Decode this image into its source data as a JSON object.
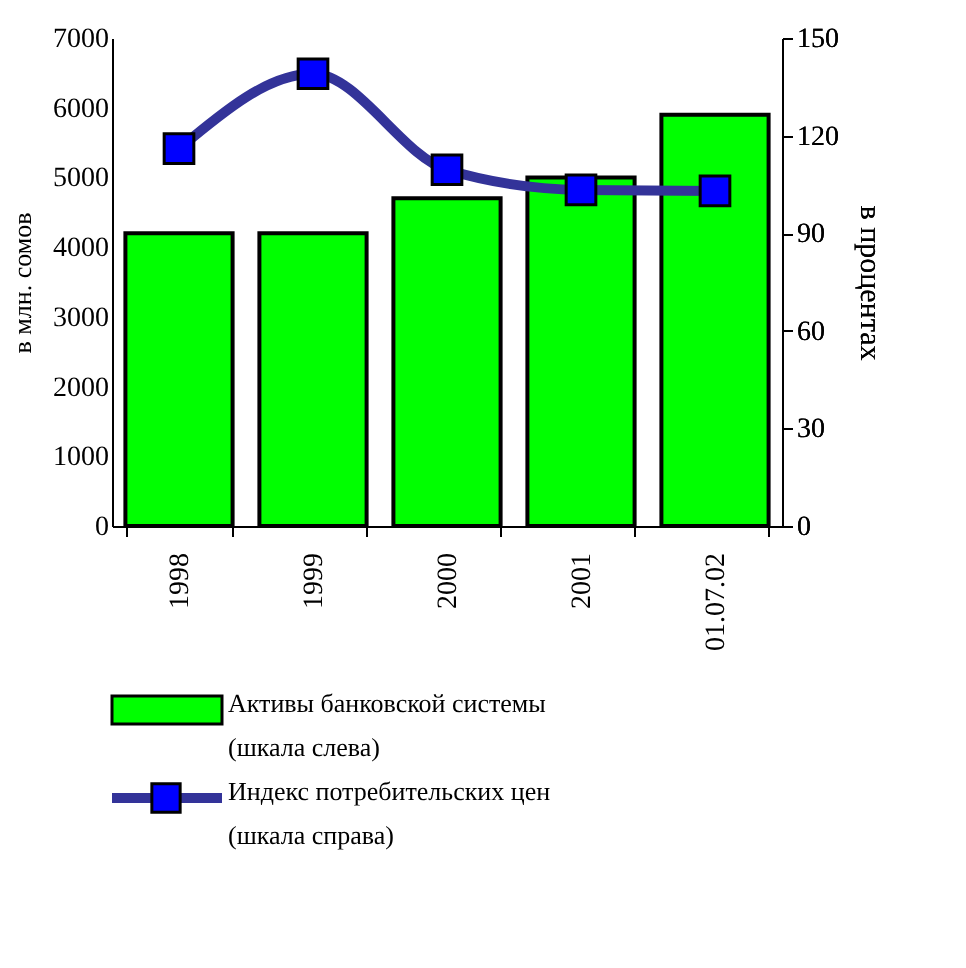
{
  "chart_data": {
    "type": "bar",
    "categories": [
      "1998",
      "1999",
      "2000",
      "2001",
      "01.07.02"
    ],
    "ylabel": "в млн. сомов",
    "y2label": "в процентах",
    "ylim": [
      0,
      7000
    ],
    "yticks": [
      0,
      1000,
      2000,
      3000,
      4000,
      5000,
      6000,
      7000
    ],
    "y2lim": [
      0,
      150
    ],
    "y2ticks": [
      0,
      30,
      60,
      90,
      120,
      150
    ],
    "series": [
      {
        "name": "Активы банковской системы\n(шкала слева)",
        "color": "#00ff00",
        "values": [
          4200,
          4200,
          4700,
          5000,
          5900
        ]
      },
      {
        "name": "Индекс потребительских цен\n(шкала справа)",
        "type": "line",
        "axis": "y2",
        "color": "#333399",
        "marker": "square",
        "values": [
          116,
          139,
          109.5,
          103.3,
          103
        ]
      }
    ],
    "legend": "bottom",
    "grid": false
  }
}
